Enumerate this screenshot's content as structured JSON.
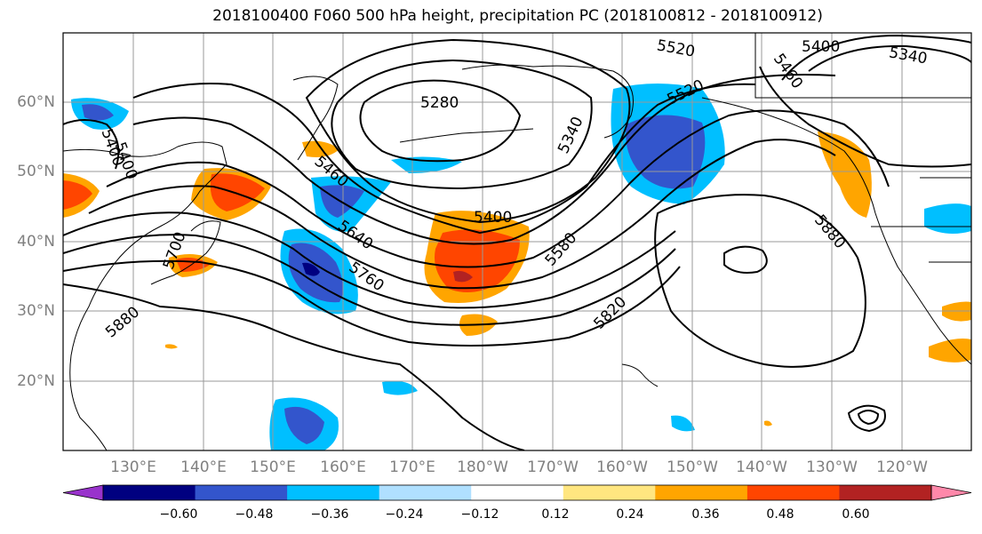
{
  "title": "2018100400 F060 500 hPa height, precipitation PC (2018100812 - 2018100912)",
  "lat_labels": [
    "60°N",
    "50°N",
    "40°N",
    "30°N",
    "20°N"
  ],
  "lon_labels": [
    "130°E",
    "140°E",
    "150°E",
    "160°E",
    "170°E",
    "180°W",
    "170°W",
    "160°W",
    "150°W",
    "140°W",
    "130°W",
    "120°W"
  ],
  "contour_labels": [
    "5280",
    "5340",
    "5400",
    "5460",
    "5520",
    "5580",
    "5640",
    "5700",
    "5760",
    "5820",
    "5880"
  ],
  "colorbar": {
    "ticks": [
      "−0.60",
      "−0.48",
      "−0.36",
      "−0.24",
      "−0.12",
      "0.12",
      "0.24",
      "0.36",
      "0.48",
      "0.60"
    ],
    "colors": [
      "#9933cc",
      "#000080",
      "#3355cc",
      "#00bfff",
      "#b0e0ff",
      "#ffffff",
      "#ffe680",
      "#ffa500",
      "#ff4500",
      "#b22222",
      "#ff88aa"
    ]
  },
  "colors": {
    "neg_strong": "#3355cc",
    "neg_mid": "#00bfff",
    "neg_dark": "#000080",
    "pos_mid": "#ffa500",
    "pos_strong": "#ff4500",
    "pos_dark": "#b22222",
    "pos_light": "#ffe680"
  }
}
